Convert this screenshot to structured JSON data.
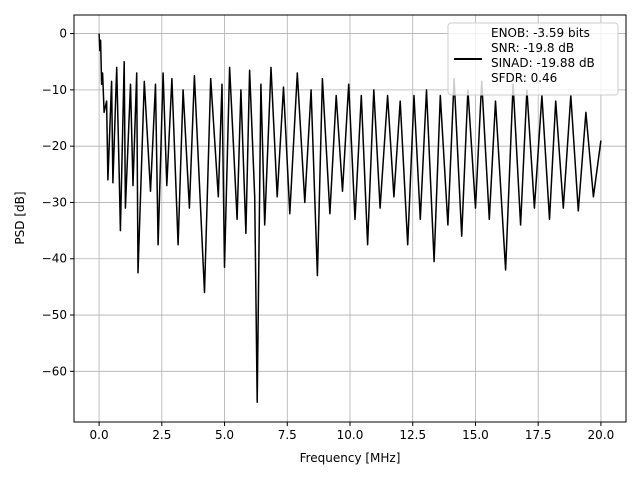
{
  "chart_data": {
    "type": "line",
    "title": "",
    "xlabel": "Frequency [MHz]",
    "ylabel": "PSD [dB]",
    "xlim": [
      -1.0,
      21.0
    ],
    "ylim": [
      -69.0,
      3.3
    ],
    "xticks": [
      0.0,
      2.5,
      5.0,
      7.5,
      10.0,
      12.5,
      15.0,
      17.5,
      20.0
    ],
    "xtick_labels": [
      "0.0",
      "2.5",
      "5.0",
      "7.5",
      "10.0",
      "12.5",
      "15.0",
      "17.5",
      "20.0"
    ],
    "yticks": [
      0,
      -10,
      -20,
      -30,
      -40,
      -50,
      -60
    ],
    "ytick_labels": [
      "0",
      "−10",
      "−20",
      "−30",
      "−40",
      "−50",
      "−60"
    ],
    "grid": true,
    "legend_position": "top-right",
    "legend": {
      "lines": [
        "ENOB: -3.59 bits",
        "SNR: -19.8 dB",
        "SINAD: -19.88 dB",
        "SFDR: 0.46"
      ]
    },
    "series": [
      {
        "color": "#000000",
        "points": [
          [
            0.0,
            0.0
          ],
          [
            0.03,
            -3.0
          ],
          [
            0.06,
            -1.2
          ],
          [
            0.1,
            -9.0
          ],
          [
            0.14,
            -7.0
          ],
          [
            0.2,
            -14.0
          ],
          [
            0.3,
            -12.0
          ],
          [
            0.35,
            -26.0
          ],
          [
            0.5,
            -8.5
          ],
          [
            0.55,
            -26.5
          ],
          [
            0.7,
            -6.0
          ],
          [
            0.8,
            -25.0
          ],
          [
            0.85,
            -35.0
          ],
          [
            1.0,
            -5.0
          ],
          [
            1.05,
            -31.0
          ],
          [
            1.25,
            -9.0
          ],
          [
            1.35,
            -27.0
          ],
          [
            1.5,
            -7.0
          ],
          [
            1.55,
            -42.5
          ],
          [
            1.8,
            -8.5
          ],
          [
            2.05,
            -28.0
          ],
          [
            2.25,
            -9.0
          ],
          [
            2.35,
            -37.5
          ],
          [
            2.55,
            -7.0
          ],
          [
            2.7,
            -27.0
          ],
          [
            2.9,
            -8.0
          ],
          [
            3.15,
            -37.5
          ],
          [
            3.35,
            -10.0
          ],
          [
            3.6,
            -31.0
          ],
          [
            3.8,
            -7.5
          ],
          [
            4.2,
            -46.0
          ],
          [
            4.45,
            -8.0
          ],
          [
            4.75,
            -29.0
          ],
          [
            4.9,
            -9.0
          ],
          [
            5.0,
            -41.5
          ],
          [
            5.2,
            -6.0
          ],
          [
            5.5,
            -33.0
          ],
          [
            5.65,
            -10.0
          ],
          [
            5.85,
            -35.5
          ],
          [
            6.0,
            -6.5
          ],
          [
            6.2,
            -29.0
          ],
          [
            6.3,
            -65.5
          ],
          [
            6.45,
            -9.0
          ],
          [
            6.6,
            -34.0
          ],
          [
            6.85,
            -6.0
          ],
          [
            7.1,
            -29.0
          ],
          [
            7.35,
            -9.5
          ],
          [
            7.6,
            -32.0
          ],
          [
            7.9,
            -7.0
          ],
          [
            8.2,
            -30.0
          ],
          [
            8.45,
            -10.0
          ],
          [
            8.7,
            -43.0
          ],
          [
            8.9,
            -8.0
          ],
          [
            9.2,
            -32.0
          ],
          [
            9.45,
            -11.0
          ],
          [
            9.7,
            -28.0
          ],
          [
            9.95,
            -9.0
          ],
          [
            10.2,
            -33.0
          ],
          [
            10.45,
            -11.0
          ],
          [
            10.7,
            -37.5
          ],
          [
            10.95,
            -10.0
          ],
          [
            11.2,
            -31.0
          ],
          [
            11.5,
            -11.0
          ],
          [
            11.75,
            -29.0
          ],
          [
            12.0,
            -12.0
          ],
          [
            12.3,
            -37.5
          ],
          [
            12.55,
            -11.0
          ],
          [
            12.8,
            -33.0
          ],
          [
            13.05,
            -10.0
          ],
          [
            13.35,
            -40.5
          ],
          [
            13.6,
            -11.0
          ],
          [
            13.9,
            -34.0
          ],
          [
            14.15,
            -8.0
          ],
          [
            14.45,
            -36.0
          ],
          [
            14.7,
            -10.0
          ],
          [
            15.0,
            -31.0
          ],
          [
            15.25,
            -8.5
          ],
          [
            15.55,
            -33.0
          ],
          [
            15.8,
            -12.0
          ],
          [
            16.2,
            -42.0
          ],
          [
            16.5,
            -9.0
          ],
          [
            16.8,
            -34.0
          ],
          [
            17.05,
            -10.0
          ],
          [
            17.35,
            -31.0
          ],
          [
            17.65,
            -11.0
          ],
          [
            17.95,
            -33.0
          ],
          [
            18.2,
            -12.0
          ],
          [
            18.5,
            -31.0
          ],
          [
            18.8,
            -11.0
          ],
          [
            19.1,
            -31.5
          ],
          [
            19.4,
            -14.0
          ],
          [
            19.7,
            -29.0
          ],
          [
            20.0,
            -19.0
          ]
        ]
      }
    ]
  }
}
